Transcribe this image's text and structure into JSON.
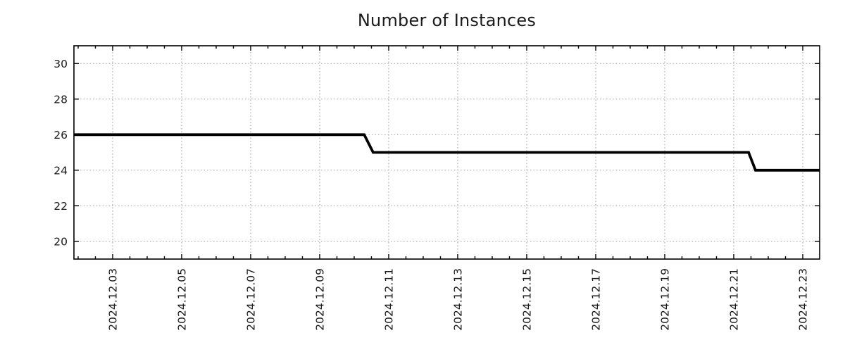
{
  "title": "Number of Instances",
  "chart_data": {
    "type": "line",
    "style": "step",
    "title": "Number of Instances",
    "legend": "none",
    "grid": "dotted-major-both-axes",
    "x_axis": {
      "kind": "time",
      "unit": "day-of-December-2024",
      "range_days": [
        1.878,
        23.49
      ],
      "major_tick_days": [
        3,
        5,
        7,
        9,
        11,
        13,
        15,
        17,
        19,
        21,
        23
      ],
      "major_tick_labels": [
        "2024.12.03",
        "2024.12.05",
        "2024.12.07",
        "2024.12.09",
        "2024.12.11",
        "2024.12.13",
        "2024.12.15",
        "2024.12.17",
        "2024.12.19",
        "2024.12.21",
        "2024.12.23"
      ],
      "minor_tick_interval_days": 0.5,
      "label_rotation_deg": -90
    },
    "y_axis": {
      "range": [
        19,
        31
      ],
      "major_ticks": [
        20,
        22,
        24,
        26,
        28,
        30
      ],
      "major_tick_labels": [
        "20",
        "22",
        "24",
        "26",
        "28",
        "30"
      ]
    },
    "series": [
      {
        "name": "instances",
        "color": "#000000",
        "points": [
          {
            "day": 1.88,
            "time": "2024.12.01 ~21:00",
            "value": 26
          },
          {
            "day": 10.29,
            "time": "2024.12.10 ~07:00",
            "value": 26
          },
          {
            "day": 10.55,
            "time": "2024.12.10 ~13:00",
            "value": 25
          },
          {
            "day": 21.43,
            "time": "2024.12.21 ~10:00",
            "value": 25
          },
          {
            "day": 21.63,
            "time": "2024.12.21 ~15:00",
            "value": 24
          },
          {
            "day": 23.49,
            "time": "2024.12.23 ~12:00",
            "value": 24
          }
        ],
        "segments": [
          {
            "value": 26,
            "from": "2024.12.01",
            "to": "2024.12.10"
          },
          {
            "value": 25,
            "from": "2024.12.10",
            "to": "2024.12.21"
          },
          {
            "value": 24,
            "from": "2024.12.21",
            "to": "2024.12.23"
          }
        ]
      }
    ],
    "colors": {
      "line": "#000000",
      "grid": "#a3a3a3",
      "frame": "#000000",
      "text": "#1a1a1a",
      "background": "#ffffff"
    }
  }
}
